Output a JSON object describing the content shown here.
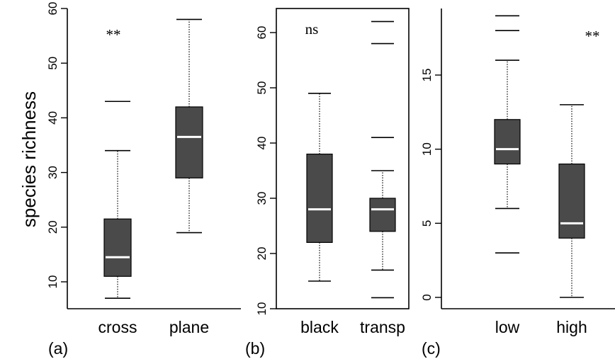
{
  "chart_data": [
    {
      "type": "box",
      "panel_label": "(a)",
      "ylabel": "species richness",
      "ylim": [
        5,
        60
      ],
      "yticks": [
        10,
        20,
        30,
        40,
        50,
        60
      ],
      "annotation": "**",
      "categories": [
        "cross",
        "plane"
      ],
      "boxes": [
        {
          "name": "cross",
          "whisker_low": 7,
          "q1": 11,
          "median": 14.5,
          "q3": 21.5,
          "whisker_high": 34,
          "outliers": [
            43
          ]
        },
        {
          "name": "plane",
          "whisker_low": 19,
          "q1": 29,
          "median": 36.5,
          "q3": 42,
          "whisker_high": 58,
          "outliers": []
        }
      ],
      "box_color": "#4a4a4a",
      "median_color": "#ffffff"
    },
    {
      "type": "box",
      "panel_label": "(b)",
      "ylabel": "",
      "ylim": [
        10,
        64
      ],
      "yticks": [
        10,
        20,
        30,
        40,
        50,
        60
      ],
      "annotation": "ns",
      "categories": [
        "black",
        "transp"
      ],
      "boxes": [
        {
          "name": "black",
          "whisker_low": 15,
          "q1": 22,
          "median": 28,
          "q3": 38,
          "whisker_high": 49,
          "outliers": []
        },
        {
          "name": "transp",
          "whisker_low": 17,
          "q1": 24,
          "median": 28,
          "q3": 30,
          "whisker_high": 35,
          "outliers": [
            12,
            41,
            58,
            62
          ]
        }
      ],
      "box_color": "#4a4a4a",
      "median_color": "#ffffff"
    },
    {
      "type": "box",
      "panel_label": "(c)",
      "ylabel": "",
      "ylim": [
        -0.5,
        19.5
      ],
      "yticks": [
        0,
        5,
        10,
        15
      ],
      "annotation": "**",
      "categories": [
        "low",
        "high"
      ],
      "boxes": [
        {
          "name": "low",
          "whisker_low": 6,
          "q1": 9,
          "median": 10,
          "q3": 12,
          "whisker_high": 16,
          "outliers": [
            3,
            18,
            19
          ]
        },
        {
          "name": "high",
          "whisker_low": 0,
          "q1": 4,
          "median": 5,
          "q3": 9,
          "whisker_high": 13,
          "outliers": []
        }
      ],
      "box_color": "#4a4a4a",
      "median_color": "#ffffff"
    }
  ]
}
